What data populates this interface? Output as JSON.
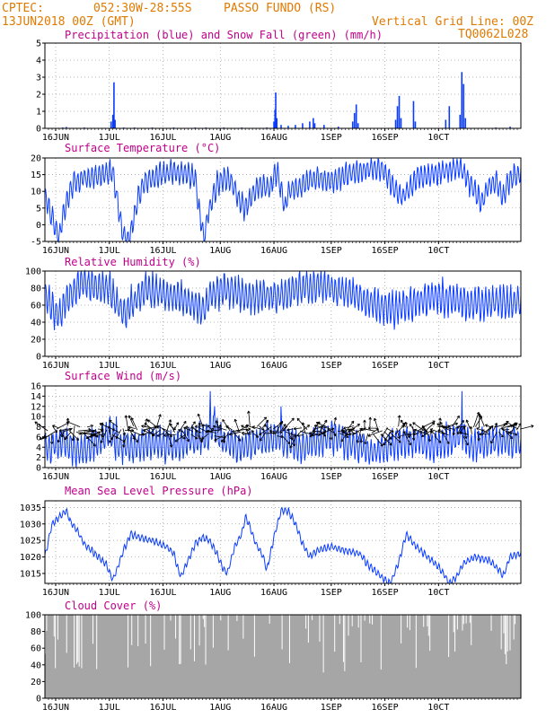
{
  "header": {
    "source": "CPTEC:",
    "coords": "052:30W-28:55S",
    "station": "PASSO FUNDO (RS)",
    "datetime": "13JUN2018 00Z (GMT)",
    "grid_note": "Vertical Grid Line: 00Z",
    "code": "TQ0062L028"
  },
  "colors": {
    "header": "#e07a00",
    "title": "#c0008a",
    "series": "#0a3cff",
    "wind_arrows": "#000000",
    "cloud": "#a6a6a6"
  },
  "x_axis": {
    "unit": "days since 13JUN2018 00Z",
    "range": [
      0,
      133
    ],
    "ticks": [
      {
        "label": "16JUN",
        "day": 3
      },
      {
        "label": "1JUL",
        "day": 18
      },
      {
        "label": "16JUL",
        "day": 33
      },
      {
        "label": "1AUG",
        "day": 49
      },
      {
        "label": "16AUG",
        "day": 64
      },
      {
        "label": "1SEP",
        "day": 80
      },
      {
        "label": "16SEP",
        "day": 95
      },
      {
        "label": "10CT",
        "day": 110
      }
    ]
  },
  "chart_data": [
    {
      "id": "precip",
      "type": "bar",
      "title": "Precipitation (blue) and Snow Fall (green) (mm/h)",
      "ylim": [
        0,
        5
      ],
      "yticks": [
        0,
        1,
        2,
        3,
        4,
        5
      ],
      "grid": true,
      "series": [
        {
          "name": "Precipitation",
          "color": "#0a3cff",
          "points": [
            [
              5,
              0.05
            ],
            [
              6,
              0.08
            ],
            [
              11,
              0.05
            ],
            [
              18.5,
              0.4
            ],
            [
              19,
              0.8
            ],
            [
              19.3,
              2.7
            ],
            [
              19.6,
              0.5
            ],
            [
              22,
              0.05
            ],
            [
              25,
              0.05
            ],
            [
              30,
              0.05
            ],
            [
              36,
              0.05
            ],
            [
              42,
              0.05
            ],
            [
              45,
              0.05
            ],
            [
              50,
              0.05
            ],
            [
              55,
              0.05
            ],
            [
              62,
              0.05
            ],
            [
              64,
              0.4
            ],
            [
              64.3,
              1.1
            ],
            [
              64.5,
              2.1
            ],
            [
              64.8,
              0.6
            ],
            [
              66,
              0.2
            ],
            [
              68,
              0.15
            ],
            [
              70,
              0.2
            ],
            [
              72,
              0.3
            ],
            [
              74,
              0.4
            ],
            [
              75,
              0.6
            ],
            [
              75.4,
              0.3
            ],
            [
              78,
              0.2
            ],
            [
              82,
              0.1
            ],
            [
              86,
              0.4
            ],
            [
              86.5,
              0.9
            ],
            [
              87,
              1.4
            ],
            [
              87.5,
              0.3
            ],
            [
              98,
              0.5
            ],
            [
              98.5,
              1.3
            ],
            [
              99,
              1.9
            ],
            [
              99.5,
              0.6
            ],
            [
              103,
              1.6
            ],
            [
              103.5,
              0.4
            ],
            [
              112,
              0.5
            ],
            [
              113,
              1.3
            ],
            [
              116,
              0.8
            ],
            [
              116.5,
              3.3
            ],
            [
              117,
              2.6
            ],
            [
              117.5,
              0.6
            ],
            [
              126,
              0.05
            ],
            [
              130,
              0.1
            ]
          ]
        }
      ]
    },
    {
      "id": "temp",
      "type": "line",
      "title": "Surface Temperature (°C)",
      "ylim": [
        -5,
        20
      ],
      "yticks": [
        -5,
        0,
        5,
        10,
        15,
        20
      ],
      "grid": true,
      "series": [
        {
          "name": "Temperature",
          "color": "#0a3cff",
          "keys": [
            [
              0,
              9
            ],
            [
              2,
              2
            ],
            [
              4,
              -4
            ],
            [
              5,
              3
            ],
            [
              8,
              13
            ],
            [
              12,
              14
            ],
            [
              16,
              15
            ],
            [
              19,
              16
            ],
            [
              21,
              2
            ],
            [
              22,
              -3
            ],
            [
              23,
              -5
            ],
            [
              24,
              -3
            ],
            [
              26,
              8
            ],
            [
              28,
              13
            ],
            [
              32,
              15
            ],
            [
              36,
              16
            ],
            [
              40,
              15
            ],
            [
              42,
              14
            ],
            [
              43,
              5
            ],
            [
              44,
              -1
            ],
            [
              44.5,
              -5
            ],
            [
              45,
              0
            ],
            [
              46,
              5
            ],
            [
              48,
              12
            ],
            [
              50,
              14
            ],
            [
              52,
              13
            ],
            [
              54,
              8
            ],
            [
              56,
              5
            ],
            [
              58,
              9
            ],
            [
              60,
              12
            ],
            [
              63,
              11
            ],
            [
              64,
              14
            ],
            [
              65,
              16
            ],
            [
              66,
              10
            ],
            [
              67,
              5
            ],
            [
              68,
              10
            ],
            [
              72,
              12
            ],
            [
              76,
              14
            ],
            [
              80,
              13
            ],
            [
              84,
              15
            ],
            [
              88,
              16
            ],
            [
              92,
              17
            ],
            [
              95,
              16
            ],
            [
              98,
              10
            ],
            [
              100,
              8
            ],
            [
              104,
              14
            ],
            [
              108,
              15
            ],
            [
              112,
              16
            ],
            [
              116,
              17
            ],
            [
              118,
              14
            ],
            [
              120,
              10
            ],
            [
              122,
              6
            ],
            [
              124,
              12
            ],
            [
              126,
              13
            ],
            [
              128,
              8
            ],
            [
              130,
              14
            ],
            [
              133,
              15
            ]
          ],
          "amp": 4
        }
      ]
    },
    {
      "id": "rh",
      "type": "line",
      "title": "Relative Humidity (%)",
      "ylim": [
        0,
        100
      ],
      "yticks": [
        0,
        20,
        40,
        60,
        80,
        100
      ],
      "grid": true,
      "series": [
        {
          "name": "Relative Humidity",
          "color": "#0a3cff",
          "keys": [
            [
              0,
              72
            ],
            [
              2,
              55
            ],
            [
              4,
              48
            ],
            [
              6,
              65
            ],
            [
              10,
              86
            ],
            [
              14,
              82
            ],
            [
              18,
              80
            ],
            [
              20,
              62
            ],
            [
              22,
              50
            ],
            [
              24,
              60
            ],
            [
              28,
              78
            ],
            [
              32,
              74
            ],
            [
              36,
              70
            ],
            [
              40,
              66
            ],
            [
              42,
              60
            ],
            [
              44,
              52
            ],
            [
              46,
              70
            ],
            [
              50,
              78
            ],
            [
              54,
              75
            ],
            [
              58,
              68
            ],
            [
              62,
              72
            ],
            [
              66,
              70
            ],
            [
              70,
              78
            ],
            [
              74,
              80
            ],
            [
              78,
              82
            ],
            [
              82,
              78
            ],
            [
              86,
              74
            ],
            [
              90,
              64
            ],
            [
              94,
              58
            ],
            [
              98,
              55
            ],
            [
              102,
              62
            ],
            [
              106,
              68
            ],
            [
              110,
              70
            ],
            [
              114,
              66
            ],
            [
              118,
              62
            ],
            [
              122,
              60
            ],
            [
              126,
              65
            ],
            [
              130,
              62
            ],
            [
              133,
              64
            ]
          ],
          "amp": 22
        }
      ]
    },
    {
      "id": "wind",
      "type": "line",
      "title": "Surface Wind (m/s)",
      "ylim": [
        0,
        16
      ],
      "yticks": [
        0,
        2,
        4,
        6,
        8,
        10,
        12,
        14,
        16
      ],
      "grid": true,
      "series": [
        {
          "name": "Wind speed",
          "color": "#0a3cff",
          "keys": [
            [
              0,
              4
            ],
            [
              5,
              5
            ],
            [
              10,
              3
            ],
            [
              15,
              5
            ],
            [
              18,
              7
            ],
            [
              20,
              4
            ],
            [
              25,
              4
            ],
            [
              30,
              5
            ],
            [
              35,
              4
            ],
            [
              40,
              5
            ],
            [
              45,
              6
            ],
            [
              47,
              8
            ],
            [
              50,
              5
            ],
            [
              55,
              4
            ],
            [
              60,
              5
            ],
            [
              64,
              6
            ],
            [
              68,
              5
            ],
            [
              72,
              4
            ],
            [
              76,
              5
            ],
            [
              80,
              6
            ],
            [
              84,
              5
            ],
            [
              88,
              4
            ],
            [
              92,
              3
            ],
            [
              96,
              4
            ],
            [
              100,
              5
            ],
            [
              104,
              5
            ],
            [
              108,
              4
            ],
            [
              112,
              5
            ],
            [
              116,
              6
            ],
            [
              120,
              4
            ],
            [
              125,
              5
            ],
            [
              133,
              5
            ]
          ],
          "amp": 3.5,
          "spikes": [
            [
              46.2,
              15
            ],
            [
              47.5,
              12
            ],
            [
              66,
              12
            ],
            [
              116.5,
              15
            ],
            [
              20,
              10
            ]
          ]
        }
      ],
      "arrows": {
        "color": "#000000",
        "baseline": 7.2
      }
    },
    {
      "id": "mslp",
      "type": "line",
      "title": "Mean Sea Level Pressure (hPa)",
      "ylim": [
        1012,
        1037
      ],
      "yticks": [
        1015,
        1020,
        1025,
        1030,
        1035
      ],
      "grid": true,
      "series": [
        {
          "name": "MSLP",
          "color": "#0a3cff",
          "keys": [
            [
              0,
              1020
            ],
            [
              2,
              1030
            ],
            [
              4,
              1032
            ],
            [
              6,
              1034
            ],
            [
              7,
              1031
            ],
            [
              9,
              1028
            ],
            [
              11,
              1024
            ],
            [
              14,
              1021
            ],
            [
              17,
              1018
            ],
            [
              19,
              1013
            ],
            [
              20,
              1016
            ],
            [
              22,
              1022
            ],
            [
              24,
              1027
            ],
            [
              26,
              1026
            ],
            [
              30,
              1025
            ],
            [
              34,
              1023
            ],
            [
              36,
              1021
            ],
            [
              37,
              1017
            ],
            [
              38,
              1014
            ],
            [
              40,
              1019
            ],
            [
              42,
              1024
            ],
            [
              44,
              1026
            ],
            [
              46,
              1025
            ],
            [
              48,
              1021
            ],
            [
              50,
              1016
            ],
            [
              51,
              1015
            ],
            [
              53,
              1023
            ],
            [
              55,
              1027
            ],
            [
              56,
              1032
            ],
            [
              57,
              1030
            ],
            [
              59,
              1024
            ],
            [
              61,
              1020
            ],
            [
              62,
              1016
            ],
            [
              64,
              1026
            ],
            [
              66,
              1034
            ],
            [
              68,
              1034
            ],
            [
              70,
              1030
            ],
            [
              72,
              1024
            ],
            [
              74,
              1020
            ],
            [
              76,
              1022
            ],
            [
              80,
              1023
            ],
            [
              84,
              1022
            ],
            [
              88,
              1021
            ],
            [
              90,
              1018
            ],
            [
              92,
              1016
            ],
            [
              94,
              1014
            ],
            [
              96,
              1012
            ],
            [
              97,
              1013
            ],
            [
              99,
              1019
            ],
            [
              101,
              1027
            ],
            [
              103,
              1024
            ],
            [
              106,
              1021
            ],
            [
              108,
              1019
            ],
            [
              110,
              1017
            ],
            [
              112,
              1014
            ],
            [
              113,
              1012
            ],
            [
              115,
              1014
            ],
            [
              117,
              1018
            ],
            [
              120,
              1020
            ],
            [
              124,
              1019
            ],
            [
              127,
              1016
            ],
            [
              128,
              1014
            ],
            [
              130,
              1020
            ],
            [
              133,
              1021
            ]
          ],
          "amp": 1.2
        }
      ]
    },
    {
      "id": "cloud",
      "type": "area",
      "title": "Cloud Cover (%)",
      "ylim": [
        0,
        100
      ],
      "yticks": [
        0,
        20,
        40,
        60,
        80,
        100
      ],
      "grid": true,
      "series": [
        {
          "name": "Cloud Cover",
          "color": "#a6a6a6",
          "level": 95
        }
      ]
    }
  ]
}
